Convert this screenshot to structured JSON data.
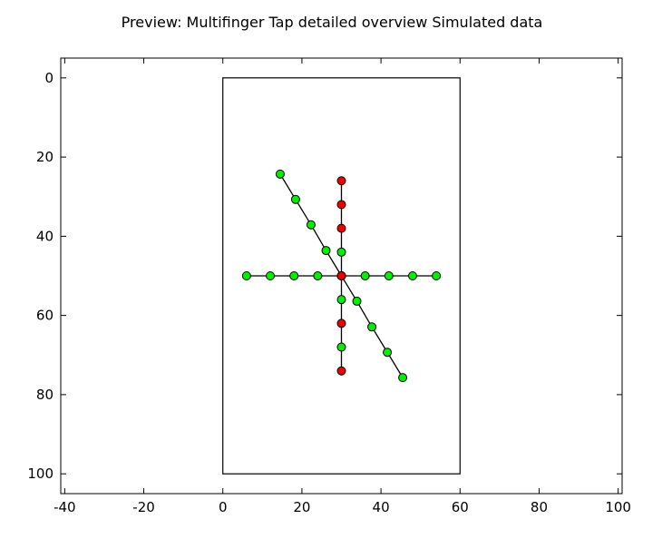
{
  "chart_data": {
    "type": "scatter",
    "title": "Preview: Multifinger Tap detailed overview Simulated data",
    "xlabel": "",
    "ylabel": "",
    "xlim": [
      -41,
      101
    ],
    "ylim": [
      105,
      -5
    ],
    "y_inverted": true,
    "x_ticks": [
      -40,
      -20,
      0,
      20,
      40,
      60,
      80,
      100
    ],
    "y_ticks": [
      0,
      20,
      40,
      60,
      80,
      100
    ],
    "grid": false,
    "colors": {
      "green": "#00ee00",
      "red": "#ee0000",
      "line": "#000000"
    },
    "rectangle": {
      "x0": 0,
      "y0": 0,
      "x1": 60,
      "y1": 100
    },
    "series": [
      {
        "points": [
          [
            6,
            50
          ],
          [
            12,
            50
          ],
          [
            18,
            50
          ],
          [
            24,
            50
          ],
          [
            30,
            50
          ],
          [
            36,
            50
          ],
          [
            42,
            50
          ],
          [
            48,
            50
          ],
          [
            54,
            50
          ]
        ],
        "colors": [
          "green",
          "green",
          "green",
          "green",
          "red",
          "green",
          "green",
          "green",
          "green"
        ]
      },
      {
        "points": [
          [
            30,
            26
          ],
          [
            30,
            32
          ],
          [
            30,
            38
          ],
          [
            30,
            44
          ],
          [
            30,
            50
          ],
          [
            30,
            56
          ],
          [
            30,
            62
          ],
          [
            30,
            68
          ],
          [
            30,
            74
          ]
        ],
        "colors": [
          "red",
          "red",
          "red",
          "green",
          "red",
          "green",
          "red",
          "green",
          "red"
        ]
      },
      {
        "points": [
          [
            14.5,
            24.3
          ],
          [
            18.4,
            30.7
          ],
          [
            22.3,
            37.1
          ],
          [
            26.1,
            43.6
          ],
          [
            30,
            50
          ],
          [
            33.9,
            56.4
          ],
          [
            37.7,
            62.9
          ],
          [
            41.6,
            69.3
          ],
          [
            45.5,
            75.7
          ]
        ],
        "colors": [
          "green",
          "green",
          "green",
          "green",
          "red",
          "green",
          "green",
          "green",
          "green"
        ]
      }
    ]
  }
}
